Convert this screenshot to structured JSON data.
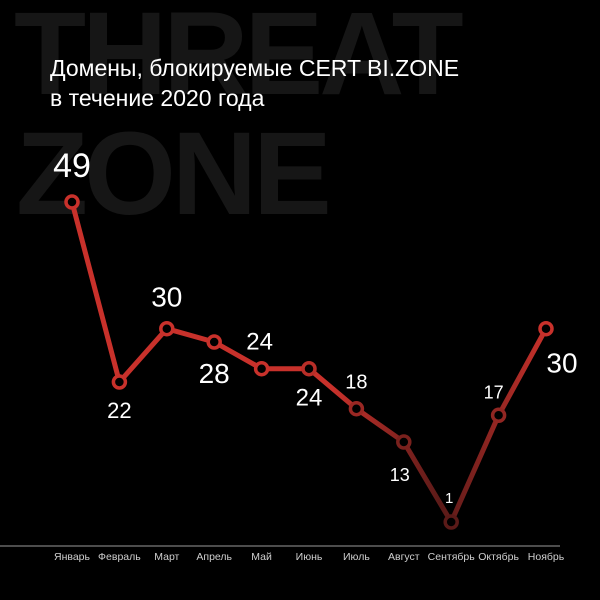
{
  "watermark": {
    "line1": "THREAT",
    "line2": "ZONE"
  },
  "colors": {
    "background": "#000000",
    "line_start": "#c8312b",
    "line_end": "#5a1a18",
    "marker_fill": "#000000",
    "label": "#ffffff",
    "axis": "#9a9a9a",
    "watermark": "#161616"
  },
  "chart_data": {
    "type": "line",
    "title": "Домены, блокируемые CERT BI.ZONE в течение 2020 года",
    "title_lines": [
      "Домены, блокируемые CERT BI.ZONE",
      "в течение 2020 года"
    ],
    "xlabel": "",
    "ylabel": "",
    "ylim": [
      1,
      49
    ],
    "grid": false,
    "categories": [
      "Январь",
      "Февраль",
      "Март",
      "Апрель",
      "Май",
      "Июнь",
      "Июль",
      "Август",
      "Сентябрь",
      "Октябрь",
      "Ноябрь"
    ],
    "values": [
      49,
      22,
      30,
      28,
      24,
      24,
      18,
      13,
      1,
      17,
      30
    ],
    "data_labels": [
      "49",
      "22",
      "30",
      "28",
      "24",
      "24",
      "18",
      "13",
      "1",
      "17",
      "30"
    ]
  }
}
